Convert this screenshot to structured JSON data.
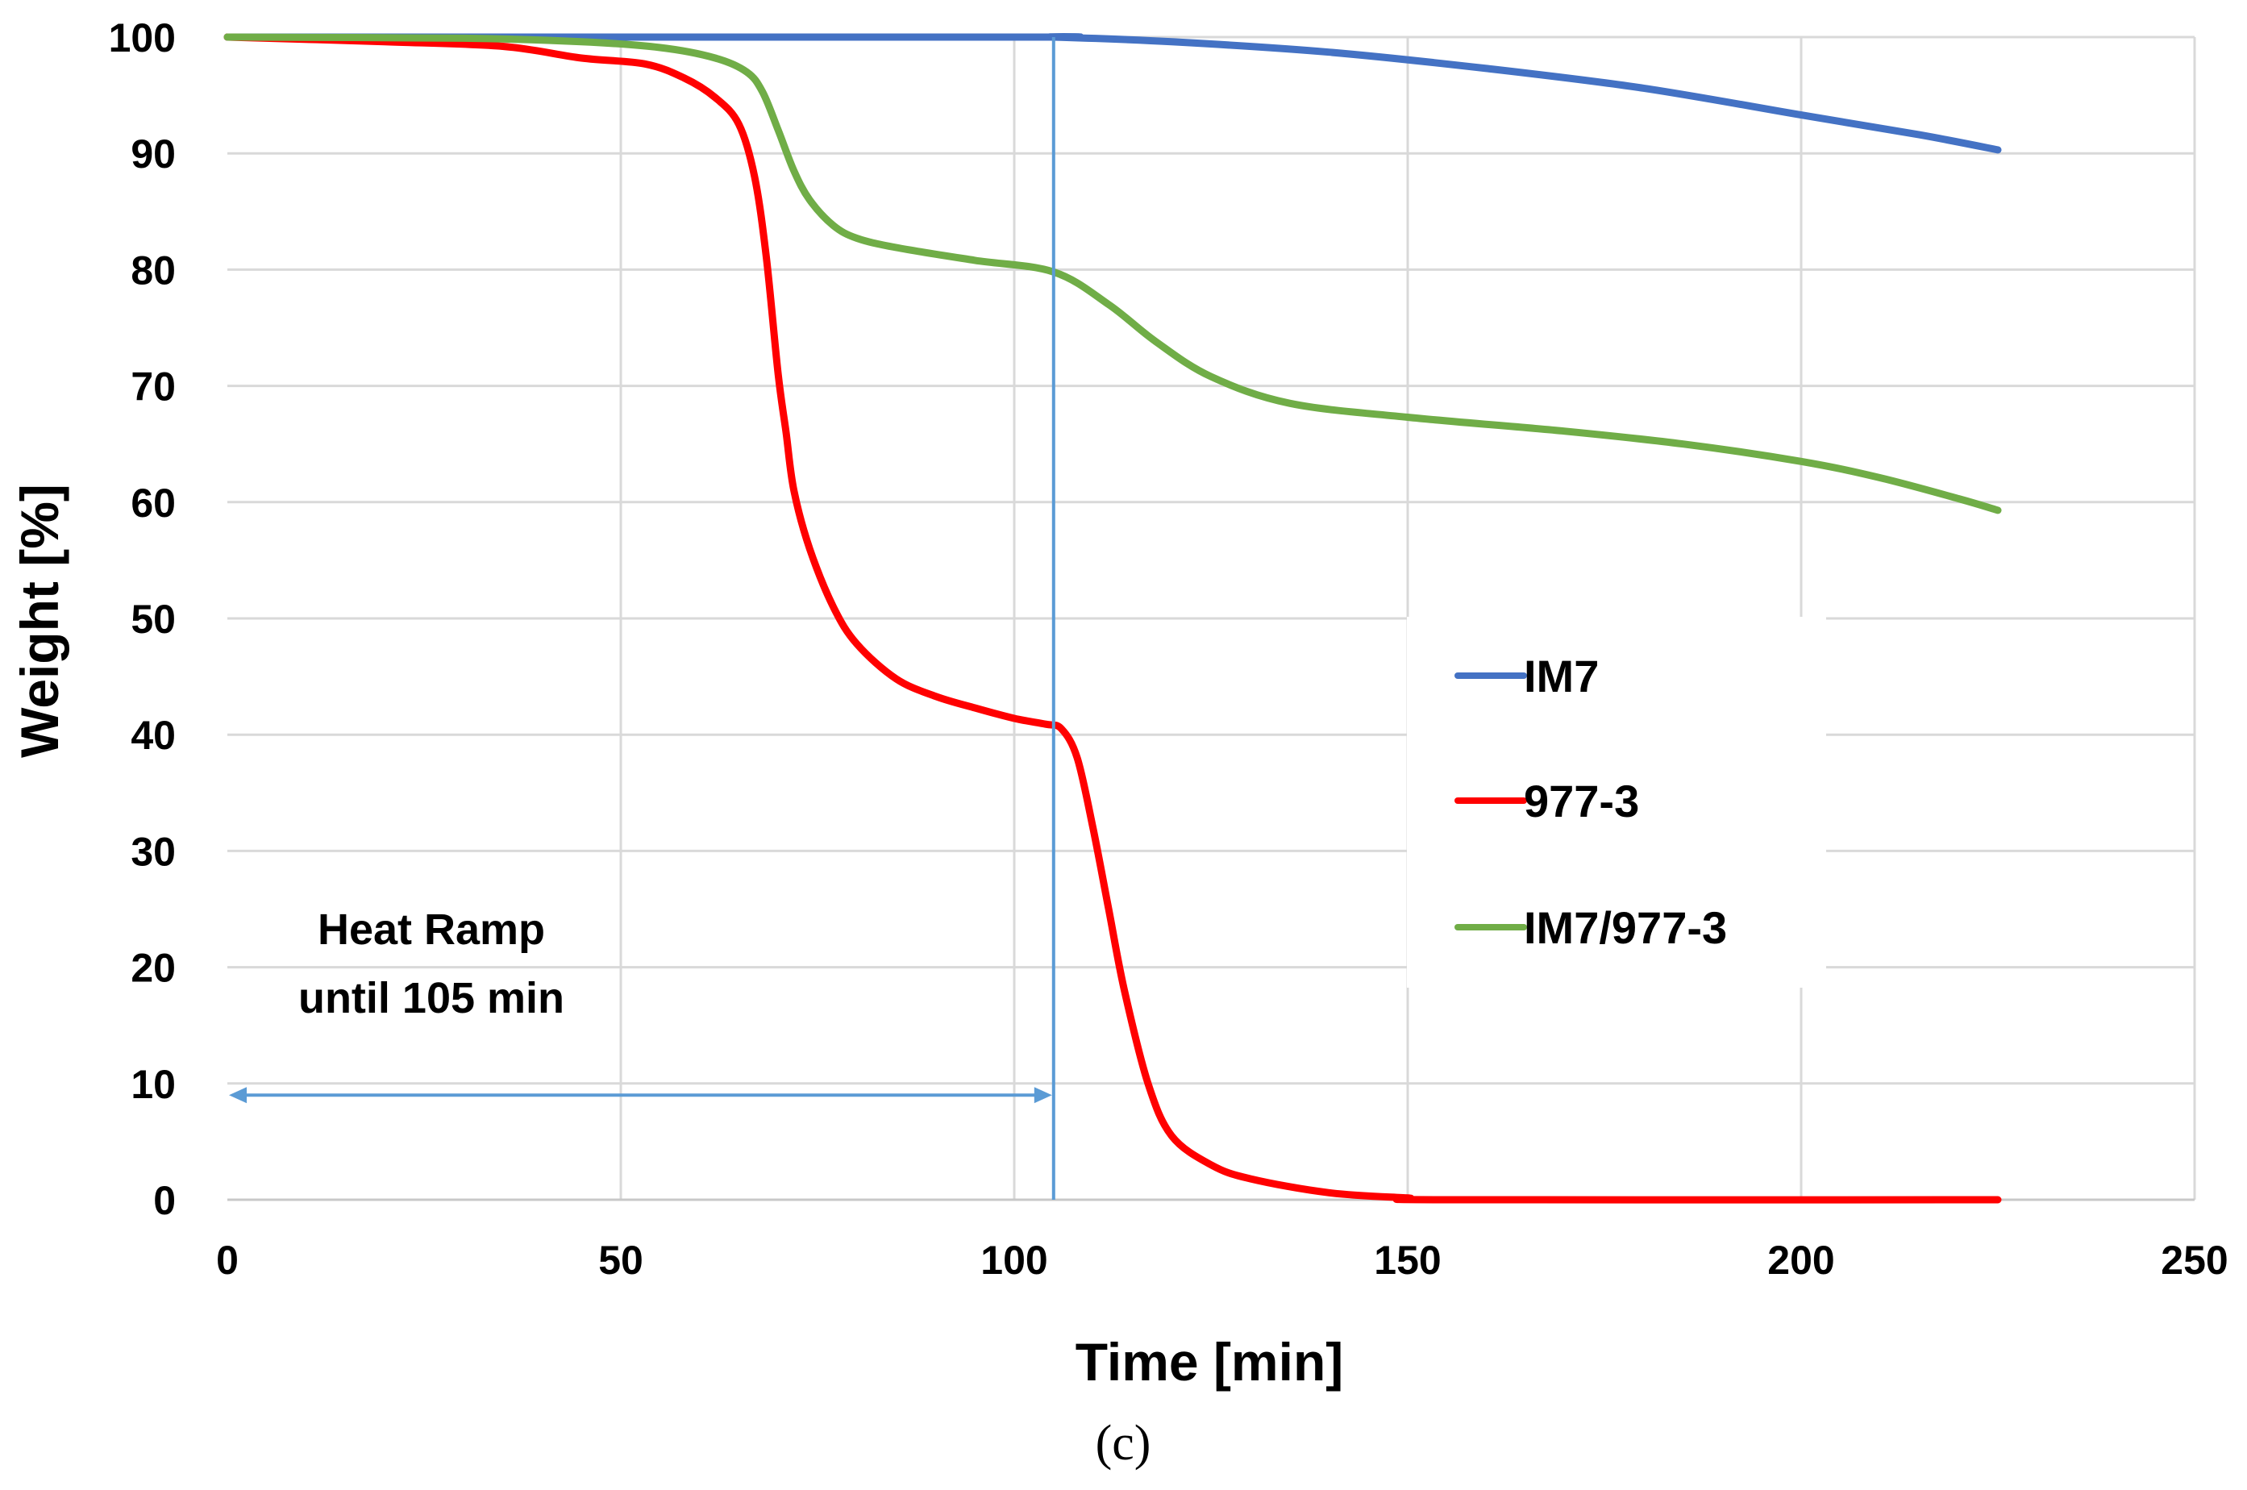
{
  "chart_data": {
    "type": "line",
    "title": "",
    "xlabel": "Time [min]",
    "ylabel": "Weight [%]",
    "xlim": [
      0,
      250
    ],
    "ylim": [
      0,
      100
    ],
    "xticks": [
      0,
      50,
      100,
      150,
      200,
      250
    ],
    "yticks": [
      0,
      10,
      20,
      30,
      40,
      50,
      60,
      70,
      80,
      90,
      100
    ],
    "grid": true,
    "legend_position": "center-right",
    "series": [
      {
        "name": "IM7",
        "color": "#4472C4",
        "points": [
          [
            0,
            100
          ],
          [
            100,
            100
          ],
          [
            105,
            100
          ],
          [
            120,
            99.6
          ],
          [
            140,
            98.7
          ],
          [
            160,
            97.3
          ],
          [
            180,
            95.6
          ],
          [
            200,
            93.3
          ],
          [
            215,
            91.6
          ],
          [
            225,
            90.3
          ]
        ]
      },
      {
        "name": "977-3",
        "color": "#FF0000",
        "points": [
          [
            0,
            100
          ],
          [
            20,
            99.6
          ],
          [
            35,
            99.2
          ],
          [
            45,
            98.2
          ],
          [
            53,
            97.7
          ],
          [
            58,
            96.5
          ],
          [
            62,
            94.8
          ],
          [
            65,
            92.5
          ],
          [
            67,
            88
          ],
          [
            68.5,
            81
          ],
          [
            70,
            71
          ],
          [
            71,
            66
          ],
          [
            72,
            61
          ],
          [
            74,
            56
          ],
          [
            77,
            51
          ],
          [
            80,
            47.8
          ],
          [
            85,
            44.8
          ],
          [
            90,
            43.3
          ],
          [
            95,
            42.3
          ],
          [
            100,
            41.4
          ],
          [
            104,
            40.9
          ],
          [
            106,
            40.5
          ],
          [
            108,
            38
          ],
          [
            110,
            32
          ],
          [
            112,
            25
          ],
          [
            114,
            18
          ],
          [
            117,
            10
          ],
          [
            120,
            5.5
          ],
          [
            125,
            3
          ],
          [
            130,
            1.8
          ],
          [
            140,
            0.6
          ],
          [
            150,
            0.15
          ],
          [
            155,
            0
          ],
          [
            225,
            0
          ]
        ]
      },
      {
        "name": "IM7/977-3",
        "color": "#70AD47",
        "points": [
          [
            0,
            100
          ],
          [
            30,
            99.9
          ],
          [
            45,
            99.6
          ],
          [
            55,
            99.1
          ],
          [
            62,
            98.2
          ],
          [
            66,
            97
          ],
          [
            68,
            95.3
          ],
          [
            70,
            92
          ],
          [
            72,
            88.5
          ],
          [
            74,
            86
          ],
          [
            77,
            83.8
          ],
          [
            80,
            82.7
          ],
          [
            85,
            81.9
          ],
          [
            95,
            80.8
          ],
          [
            105,
            79.8
          ],
          [
            112,
            77
          ],
          [
            118,
            73.8
          ],
          [
            125,
            70.8
          ],
          [
            135,
            68.5
          ],
          [
            150,
            67.3
          ],
          [
            170,
            66.1
          ],
          [
            185,
            65
          ],
          [
            200,
            63.5
          ],
          [
            210,
            62.1
          ],
          [
            220,
            60.3
          ],
          [
            225,
            59.3
          ]
        ]
      }
    ],
    "annotations": {
      "heat_ramp_line1": "Heat Ramp",
      "heat_ramp_line2": "until 105 min",
      "heat_ramp_time": 105,
      "heat_ramp_arrow_y": 9
    },
    "caption": "(c)"
  }
}
